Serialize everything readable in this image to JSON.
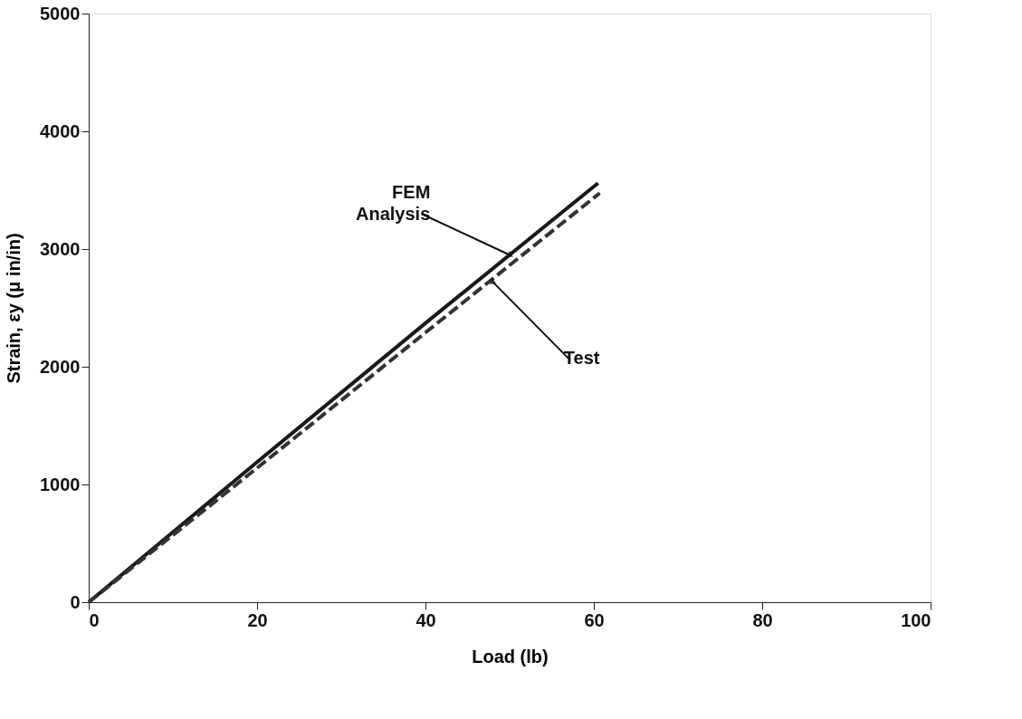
{
  "chart_data": {
    "type": "line",
    "xlabel": "Load (lb)",
    "ylabel": "Strain, εy (μ in/in)",
    "xlim": [
      0,
      100
    ],
    "xticks": [
      0,
      20,
      40,
      60,
      80,
      100
    ],
    "ylim": [
      0,
      5000
    ],
    "yticks": [
      0,
      1000,
      2000,
      3000,
      4000,
      5000
    ],
    "grid": false,
    "series": [
      {
        "color": "#1a1a1a",
        "line_style": "solid",
        "x": [
          0,
          20,
          40,
          60.5
        ],
        "values": [
          0,
          1190,
          2370,
          3560
        ]
      },
      {
        "color": "#333333",
        "line_style": "dashed",
        "x": [
          0,
          20,
          40,
          60.7
        ],
        "values": [
          0,
          1140,
          2290,
          3475
        ]
      }
    ],
    "annotations": [
      {
        "text": "FEM\nAnalysis",
        "x": 50,
        "y": 2950
      },
      {
        "text": "Test",
        "x": 48,
        "y": 2720
      }
    ]
  }
}
